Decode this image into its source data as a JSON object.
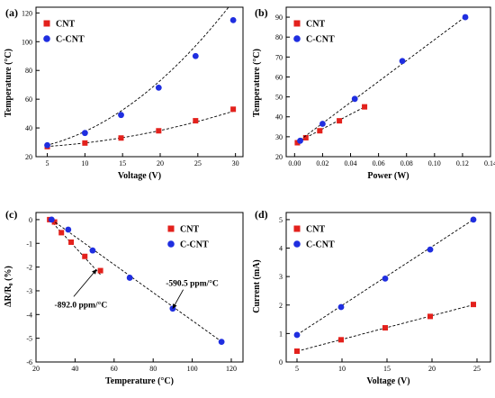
{
  "colors": {
    "CNT": "#e3211c",
    "C-CNT": "#1f2ee0",
    "fit": "#000000"
  },
  "chart_data": [
    {
      "type": "scatter",
      "panel_label": "(a)",
      "xlabel": "Voltage (V)",
      "ylabel": "Temperature (°C)",
      "xlim": [
        3.5,
        31
      ],
      "ylim": [
        20,
        124
      ],
      "xticks": [
        5,
        10,
        15,
        20,
        25,
        30
      ],
      "yticks": [
        20,
        40,
        60,
        80,
        100,
        120
      ],
      "tick_labels_x": [
        "5",
        "10",
        "15",
        "20",
        "25",
        "30"
      ],
      "tick_labels_y": [
        "20",
        "40",
        "60",
        "80",
        "100",
        "120"
      ],
      "legend_placement": "top-left",
      "series": [
        {
          "name": "CNT",
          "marker": "square",
          "x": [
            5,
            10,
            14.8,
            19.8,
            24.7,
            29.7
          ],
          "y": [
            27,
            29.5,
            33,
            38,
            45,
            53
          ],
          "fit": [
            0.0258,
            0.0964,
            26.0
          ]
        },
        {
          "name": "C-CNT",
          "marker": "circle",
          "x": [
            5,
            10,
            14.8,
            19.8,
            24.7,
            29.7
          ],
          "y": [
            28,
            36.5,
            49,
            68,
            90,
            115
          ],
          "fit": [
            0.1093,
            0.2605,
            24.0
          ]
        }
      ],
      "annotations": []
    },
    {
      "type": "scatter",
      "panel_label": "(b)",
      "xlabel": "Power (W)",
      "ylabel": "Temperature (°C)",
      "xlim": [
        -0.006,
        0.14
      ],
      "ylim": [
        20,
        95
      ],
      "xticks": [
        0.0,
        0.02,
        0.04,
        0.06,
        0.08,
        0.1,
        0.12,
        0.14
      ],
      "yticks": [
        20,
        30,
        40,
        50,
        60,
        70,
        80,
        90
      ],
      "tick_labels_x": [
        "0.00",
        "0.02",
        "0.04",
        "0.06",
        "0.08",
        "0.10",
        "0.12",
        "0.14"
      ],
      "tick_labels_y": [
        "20",
        "30",
        "40",
        "50",
        "60",
        "70",
        "80",
        "90"
      ],
      "legend_placement": "top-left",
      "series": [
        {
          "name": "CNT",
          "marker": "square",
          "x": [
            0.002,
            0.008,
            0.018,
            0.032,
            0.05
          ],
          "y": [
            27,
            29.5,
            33,
            38,
            45
          ],
          "fit": [
            0,
            367,
            26.6
          ],
          "fit_range": [
            0.002,
            0.05
          ]
        },
        {
          "name": "C-CNT",
          "marker": "circle",
          "x": [
            0.004,
            0.02,
            0.043,
            0.077,
            0.122
          ],
          "y": [
            28,
            36.5,
            49,
            68,
            90
          ],
          "fit": [
            0,
            524,
            26.3
          ],
          "fit_range": [
            0.004,
            0.122
          ]
        }
      ],
      "annotations": []
    },
    {
      "type": "scatter",
      "panel_label": "(c)",
      "xlabel": "Temperature (°C)",
      "ylabel": "ΔR/R₀ (%)",
      "xlim": [
        20,
        126
      ],
      "ylim": [
        -6,
        0.3
      ],
      "xticks": [
        20,
        40,
        60,
        80,
        100,
        120
      ],
      "yticks": [
        -6,
        -5,
        -4,
        -3,
        -2,
        -1,
        0
      ],
      "tick_labels_x": [
        "20",
        "40",
        "60",
        "80",
        "100",
        "120"
      ],
      "tick_labels_y": [
        "-6",
        "-5",
        "-4",
        "-3",
        "-2",
        "-1",
        "0"
      ],
      "legend_placement": "top-right",
      "series": [
        {
          "name": "CNT",
          "marker": "square",
          "x": [
            27,
            29.5,
            33,
            38,
            45,
            53
          ],
          "y": [
            0,
            -0.1,
            -0.55,
            -0.95,
            -1.55,
            -2.15
          ],
          "fit": [
            0,
            -0.0892,
            2.41
          ],
          "fit_range": [
            27,
            53
          ]
        },
        {
          "name": "C-CNT",
          "marker": "circle",
          "x": [
            28,
            36.5,
            49,
            68,
            90,
            115
          ],
          "y": [
            0,
            -0.42,
            -1.3,
            -2.45,
            -3.75,
            -5.15
          ],
          "fit": [
            0,
            -0.05905,
            1.65
          ],
          "fit_range": [
            28,
            115
          ]
        }
      ],
      "annotations": [
        {
          "text": "-892.0 ppm/°C",
          "target_x": 51,
          "target_y": -2.1,
          "label_x": 43,
          "label_y": -3.7
        },
        {
          "text": "-590.5 ppm/°C",
          "target_x": 90,
          "target_y": -3.75,
          "label_x": 100,
          "label_y": -2.8
        }
      ]
    },
    {
      "type": "scatter",
      "panel_label": "(d)",
      "xlabel": "Voltage (V)",
      "ylabel": "Current (mA)",
      "xlim": [
        3.8,
        26.5
      ],
      "ylim": [
        0,
        5.25
      ],
      "xticks": [
        5,
        10,
        15,
        20,
        25
      ],
      "yticks": [
        0,
        1,
        2,
        3,
        4,
        5
      ],
      "tick_labels_x": [
        "5",
        "10",
        "15",
        "20",
        "25"
      ],
      "tick_labels_y": [
        "0",
        "1",
        "2",
        "3",
        "4",
        "5"
      ],
      "legend_placement": "top-left",
      "series": [
        {
          "name": "CNT",
          "marker": "square",
          "x": [
            5,
            9.9,
            14.8,
            19.8,
            24.6
          ],
          "y": [
            0.38,
            0.78,
            1.2,
            1.6,
            2.02
          ],
          "fit": [
            0,
            0.0833,
            -0.04
          ],
          "fit_range": [
            5,
            24.6
          ]
        },
        {
          "name": "C-CNT",
          "marker": "circle",
          "x": [
            5,
            9.9,
            14.8,
            19.8,
            24.6
          ],
          "y": [
            0.95,
            1.93,
            2.93,
            3.95,
            5.0
          ],
          "fit": [
            0,
            0.2066,
            -0.08
          ],
          "fit_range": [
            5,
            24.6
          ]
        }
      ],
      "annotations": []
    }
  ]
}
